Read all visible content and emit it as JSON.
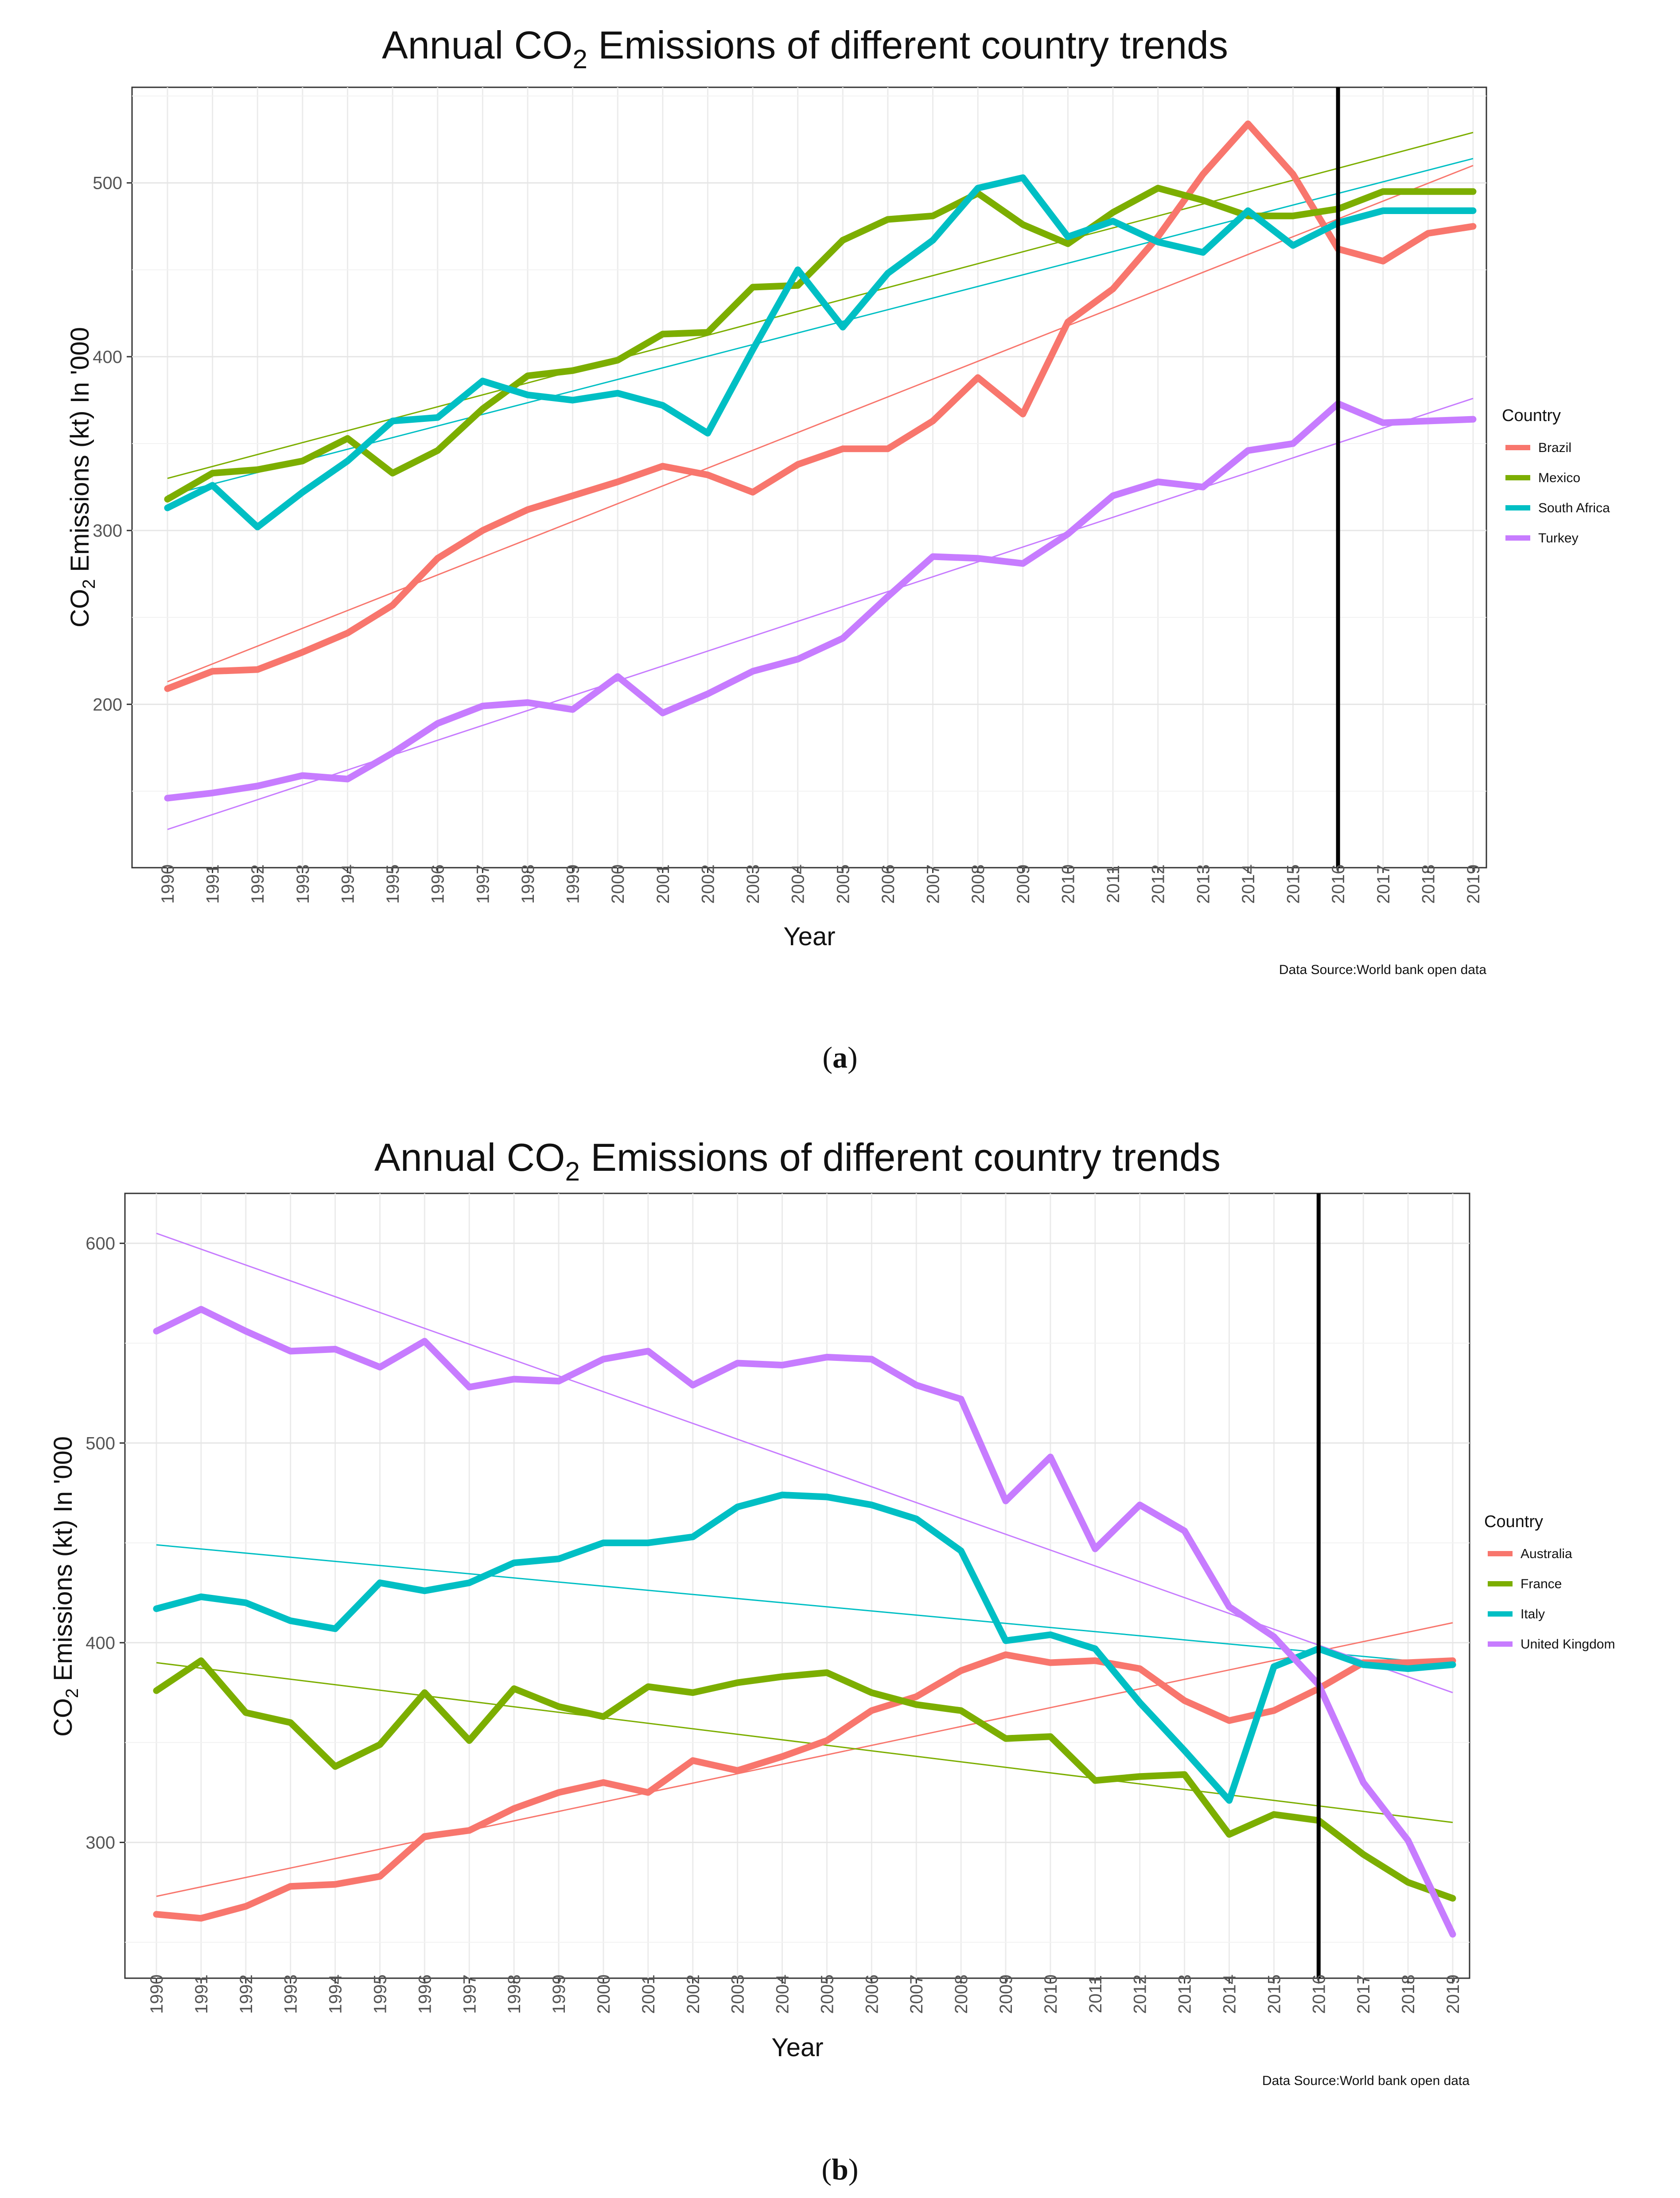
{
  "chart_data": [
    {
      "type": "line",
      "panel_caption": "a",
      "title": "Annual CO2 Emissions of different country trends",
      "title_parts": {
        "main": "Annual CO",
        "subscript": "2",
        "rest": " Emissions of different country trends"
      },
      "xlabel": "Year",
      "ylabel": "CO2 Emissions (kt) In '000",
      "ylabel_parts": {
        "main": "CO",
        "subscript": "2",
        "rest": " Emissions (kt) In '000"
      },
      "source": "Data Source:World bank open data",
      "legend_title": "Country",
      "legend_position": "right",
      "x": [
        1990,
        1991,
        1992,
        1993,
        1994,
        1995,
        1996,
        1997,
        1998,
        1999,
        2000,
        2001,
        2002,
        2003,
        2004,
        2005,
        2006,
        2007,
        2008,
        2009,
        2010,
        2011,
        2012,
        2013,
        2014,
        2015,
        2016,
        2017,
        2018,
        2019
      ],
      "x_tick_labels": [
        "1990",
        "1991",
        "1992",
        "1993",
        "1994",
        "1995",
        "1996",
        "1997",
        "1998",
        "1999",
        "2000",
        "2001",
        "2002",
        "2003",
        "2004",
        "2005",
        "2006",
        "2007",
        "2008",
        "2009",
        "2010",
        "2011",
        "2012",
        "2013",
        "2014",
        "2015",
        "2016",
        "2017",
        "2018",
        "2019"
      ],
      "ylim": [
        106,
        555
      ],
      "y_ticks": [
        200,
        300,
        400,
        500
      ],
      "y_tick_labels": [
        "200",
        "300",
        "400",
        "500"
      ],
      "vline_x": 2016,
      "grid": true,
      "series": [
        {
          "name": "Brazil",
          "color": "#F8766D",
          "values": [
            209,
            219,
            220,
            230,
            241,
            257,
            284,
            300,
            312,
            320,
            328,
            337,
            332,
            322,
            338,
            347,
            347,
            363,
            388,
            367,
            420,
            439,
            469,
            505,
            534,
            505,
            462,
            455,
            471,
            475
          ],
          "trend": [
            213,
            510
          ]
        },
        {
          "name": "Mexico",
          "color": "#7CAE00",
          "values": [
            318,
            333,
            335,
            340,
            353,
            333,
            346,
            370,
            389,
            392,
            398,
            413,
            414,
            440,
            441,
            467,
            479,
            481,
            494,
            476,
            465,
            483,
            497,
            490,
            481,
            481,
            485,
            495,
            495,
            495
          ],
          "trend": [
            330,
            529
          ]
        },
        {
          "name": "South Africa",
          "color": "#00BFC4",
          "values": [
            313,
            326,
            302,
            322,
            340,
            363,
            365,
            386,
            378,
            375,
            379,
            372,
            356,
            404,
            450,
            417,
            448,
            467,
            497,
            503,
            469,
            478,
            466,
            460,
            484,
            464,
            477,
            484,
            484,
            484
          ],
          "trend": [
            320,
            514
          ]
        },
        {
          "name": "Turkey",
          "color": "#C77CFF",
          "values": [
            146,
            149,
            153,
            159,
            157,
            172,
            189,
            199,
            201,
            197,
            216,
            195,
            206,
            219,
            226,
            238,
            262,
            285,
            284,
            281,
            298,
            320,
            328,
            325,
            346,
            350,
            373,
            362,
            363,
            364
          ],
          "trend": [
            128,
            376
          ]
        }
      ]
    },
    {
      "type": "line",
      "panel_caption": "b",
      "title": "Annual CO2 Emissions of different country trends",
      "title_parts": {
        "main": "Annual CO",
        "subscript": "2",
        "rest": " Emissions of different country trends"
      },
      "xlabel": "Year",
      "ylabel": "CO2 Emissions (kt) In '000",
      "ylabel_parts": {
        "main": "CO",
        "subscript": "2",
        "rest": " Emissions (kt) In '000"
      },
      "source": "Data Source:World bank open data",
      "legend_title": "Country",
      "legend_position": "right",
      "x": [
        1990,
        1991,
        1992,
        1993,
        1994,
        1995,
        1996,
        1997,
        1998,
        1999,
        2000,
        2001,
        2002,
        2003,
        2004,
        2005,
        2006,
        2007,
        2008,
        2009,
        2010,
        2011,
        2012,
        2013,
        2014,
        2015,
        2016,
        2017,
        2018,
        2019
      ],
      "x_tick_labels": [
        "1990",
        "1991",
        "1992",
        "1993",
        "1994",
        "1995",
        "1996",
        "1997",
        "1998",
        "1999",
        "2000",
        "2001",
        "2002",
        "2003",
        "2004",
        "2005",
        "2006",
        "2007",
        "2008",
        "2009",
        "2010",
        "2011",
        "2012",
        "2013",
        "2014",
        "2015",
        "2016",
        "2017",
        "2018",
        "2019"
      ],
      "ylim": [
        232,
        625
      ],
      "y_ticks": [
        300,
        400,
        500,
        600
      ],
      "y_tick_labels": [
        "300",
        "400",
        "500",
        "600"
      ],
      "vline_x": 2016,
      "grid": true,
      "series": [
        {
          "name": "Australia",
          "color": "#F8766D",
          "values": [
            264,
            262,
            268,
            278,
            279,
            283,
            303,
            306,
            317,
            325,
            330,
            325,
            341,
            336,
            343,
            351,
            366,
            373,
            386,
            394,
            390,
            391,
            387,
            371,
            361,
            366,
            377,
            390,
            390,
            391
          ],
          "trend": [
            273,
            410
          ]
        },
        {
          "name": "France",
          "color": "#7CAE00",
          "values": [
            376,
            391,
            365,
            360,
            338,
            349,
            375,
            351,
            377,
            368,
            363,
            378,
            375,
            380,
            383,
            385,
            375,
            369,
            366,
            352,
            353,
            331,
            333,
            334,
            304,
            314,
            311,
            294,
            280,
            272
          ],
          "trend": [
            390,
            310
          ]
        },
        {
          "name": "Italy",
          "color": "#00BFC4",
          "values": [
            417,
            423,
            420,
            411,
            407,
            430,
            426,
            430,
            440,
            442,
            450,
            450,
            453,
            468,
            474,
            473,
            469,
            462,
            446,
            401,
            404,
            397,
            370,
            346,
            321,
            388,
            397,
            389,
            387,
            389
          ],
          "trend": [
            449,
            389
          ]
        },
        {
          "name": "United Kingdom",
          "color": "#C77CFF",
          "values": [
            556,
            567,
            556,
            546,
            547,
            538,
            551,
            528,
            532,
            531,
            542,
            546,
            529,
            540,
            539,
            543,
            542,
            529,
            522,
            471,
            493,
            447,
            469,
            456,
            418,
            403,
            379,
            330,
            301,
            254
          ],
          "trend": [
            605,
            375
          ]
        }
      ]
    }
  ],
  "captions": [
    "a",
    "b"
  ]
}
